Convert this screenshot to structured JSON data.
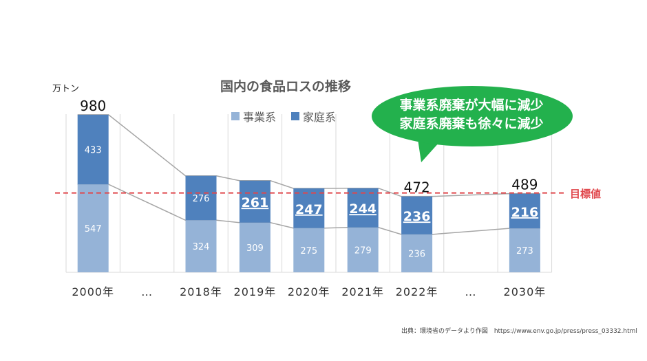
{
  "title": "国内の食品ロスの推移",
  "unit": "万トン",
  "legend": {
    "business": "事業系",
    "household": "家庭系"
  },
  "colors": {
    "business": "#95b3d7",
    "household": "#4f81bd",
    "target": "#e0474c",
    "bubble": "#23b14d"
  },
  "bubble": {
    "line1": "事業系廃棄が大幅に減少",
    "line2": "家庭系廃棄も徐々に減少"
  },
  "target_label": "目標値",
  "source": "出典：環境省のデータより作図　https://www.env.go.jp/press/press_03332.html",
  "chart_data": {
    "type": "bar",
    "stacked": true,
    "title": "国内の食品ロスの推移",
    "ylabel": "万トン",
    "categories": [
      "2000年",
      "…",
      "2018年",
      "2019年",
      "2020年",
      "2021年",
      "2022年",
      "…",
      "2030年"
    ],
    "series": [
      {
        "name": "事業系",
        "values": [
          547,
          null,
          324,
          309,
          275,
          279,
          236,
          null,
          273
        ]
      },
      {
        "name": "家庭系",
        "values": [
          433,
          null,
          276,
          261,
          247,
          244,
          236,
          null,
          216
        ]
      }
    ],
    "totals": [
      {
        "category": "2000年",
        "label": "980"
      },
      {
        "category": "2022年",
        "label": "472"
      },
      {
        "category": "2030年",
        "label": "489"
      }
    ],
    "target": {
      "label": "目標値",
      "value": 489
    },
    "legend_position": "top"
  }
}
